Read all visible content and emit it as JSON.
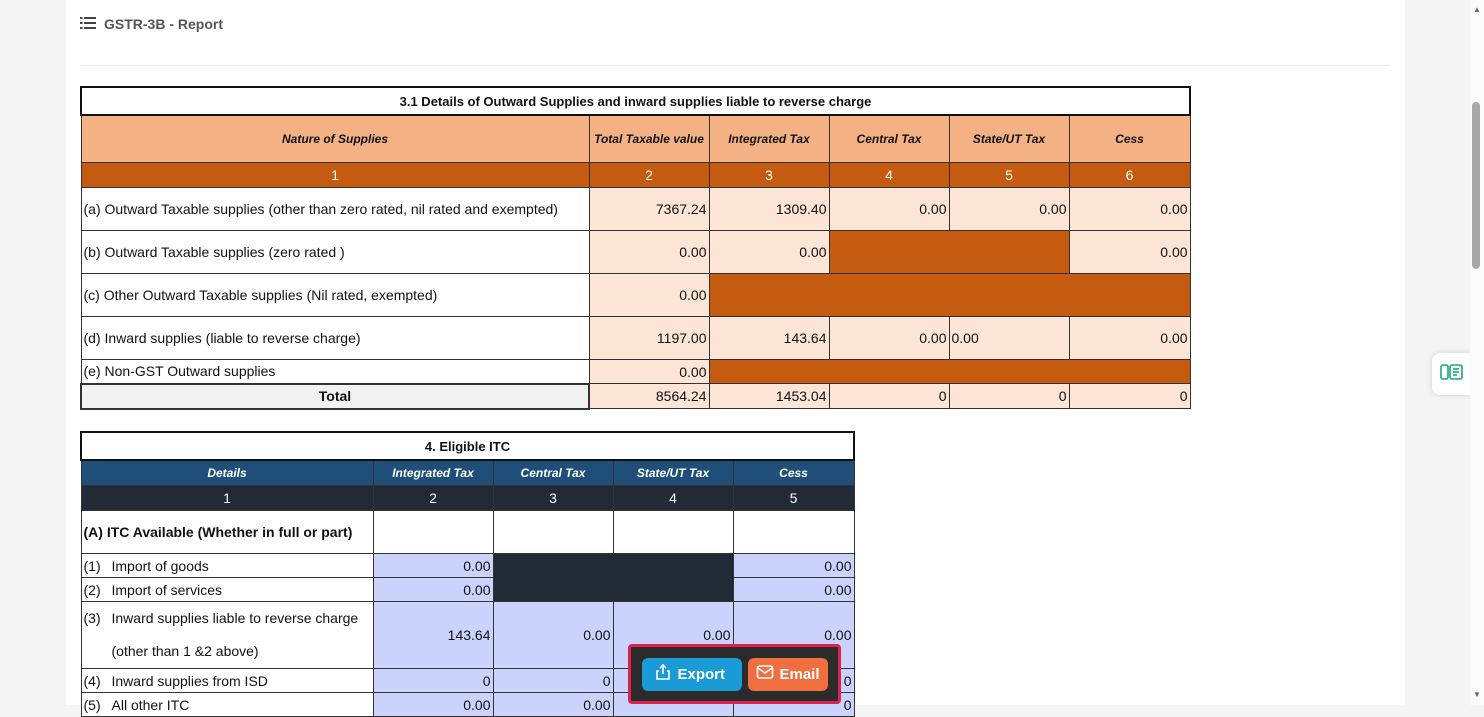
{
  "page": {
    "title": "GSTR-3B - Report"
  },
  "table31": {
    "title": "3.1 Details of Outward Supplies and inward supplies liable to reverse charge",
    "headers": [
      "Nature of Supplies",
      "Total Taxable value",
      "Integrated Tax",
      "Central Tax",
      "State/UT Tax",
      "Cess"
    ],
    "numbers": [
      "1",
      "2",
      "3",
      "4",
      "5",
      "6"
    ],
    "rows": [
      {
        "label": "(a) Outward Taxable  supplies  (other than zero rated, nil rated and exempted)",
        "taxable": "7367.24",
        "integrated": "1309.40",
        "central": "0.00",
        "state": "0.00",
        "cess": "0.00"
      },
      {
        "label": "(b) Outward Taxable  supplies  (zero rated )",
        "taxable": "0.00",
        "integrated": "0.00",
        "cess": "0.00"
      },
      {
        "label": "(c) Other Outward Taxable  supplies (Nil rated, exempted)",
        "taxable": "0.00"
      },
      {
        "label": "(d) Inward supplies (liable to reverse charge)",
        "taxable": "1197.00",
        "integrated": "143.64",
        "central": "0.00",
        "state": "0.00",
        "cess": "0.00"
      },
      {
        "label": "(e) Non-GST Outward supplies",
        "taxable": "0.00"
      }
    ],
    "total": {
      "label": "Total",
      "taxable": "8564.24",
      "integrated": "1453.04",
      "central": "0",
      "state": "0",
      "cess": "0"
    }
  },
  "table4": {
    "title": "4. Eligible ITC",
    "headers": [
      "Details",
      "Integrated Tax",
      "Central Tax",
      "State/UT Tax",
      "Cess"
    ],
    "numbers": [
      "1",
      "2",
      "3",
      "4",
      "5"
    ],
    "section_a": "(A) ITC Available (Whether in full or part)",
    "rows": [
      {
        "idx": "(1)",
        "label": "Import of goods",
        "integrated": "0.00",
        "cess": "0.00"
      },
      {
        "idx": "(2)",
        "label": "Import of services",
        "integrated": "0.00",
        "cess": "0.00"
      },
      {
        "idx": "(3)",
        "label": "Inward supplies liable to reverse charge",
        "label2": "(other than 1 &2 above)",
        "integrated": "143.64",
        "central": "0.00",
        "state": "0.00",
        "cess": "0.00"
      },
      {
        "idx": "(4)",
        "label": "Inward supplies from ISD",
        "integrated": "0",
        "central": "0",
        "cess": "0"
      },
      {
        "idx": "(5)",
        "label": "All other ITC",
        "integrated": "0.00",
        "central": "0.00",
        "cess": "0"
      }
    ]
  },
  "actions": {
    "export": "Export",
    "email": "Email"
  },
  "icons": {
    "header": "list-icon",
    "export": "upload-icon",
    "email": "mail-icon",
    "side": "notes-icon"
  },
  "colors": {
    "orange_header": "#f4b183",
    "orange_dark": "#c55a11",
    "orange_cell": "#fce4d6",
    "navy": "#1f4e79",
    "slate": "#222a35",
    "lavender": "#c9d3fb",
    "export_btn": "#1a9ad6",
    "email_btn": "#ef6f3e",
    "highlight": "#e0204f"
  }
}
